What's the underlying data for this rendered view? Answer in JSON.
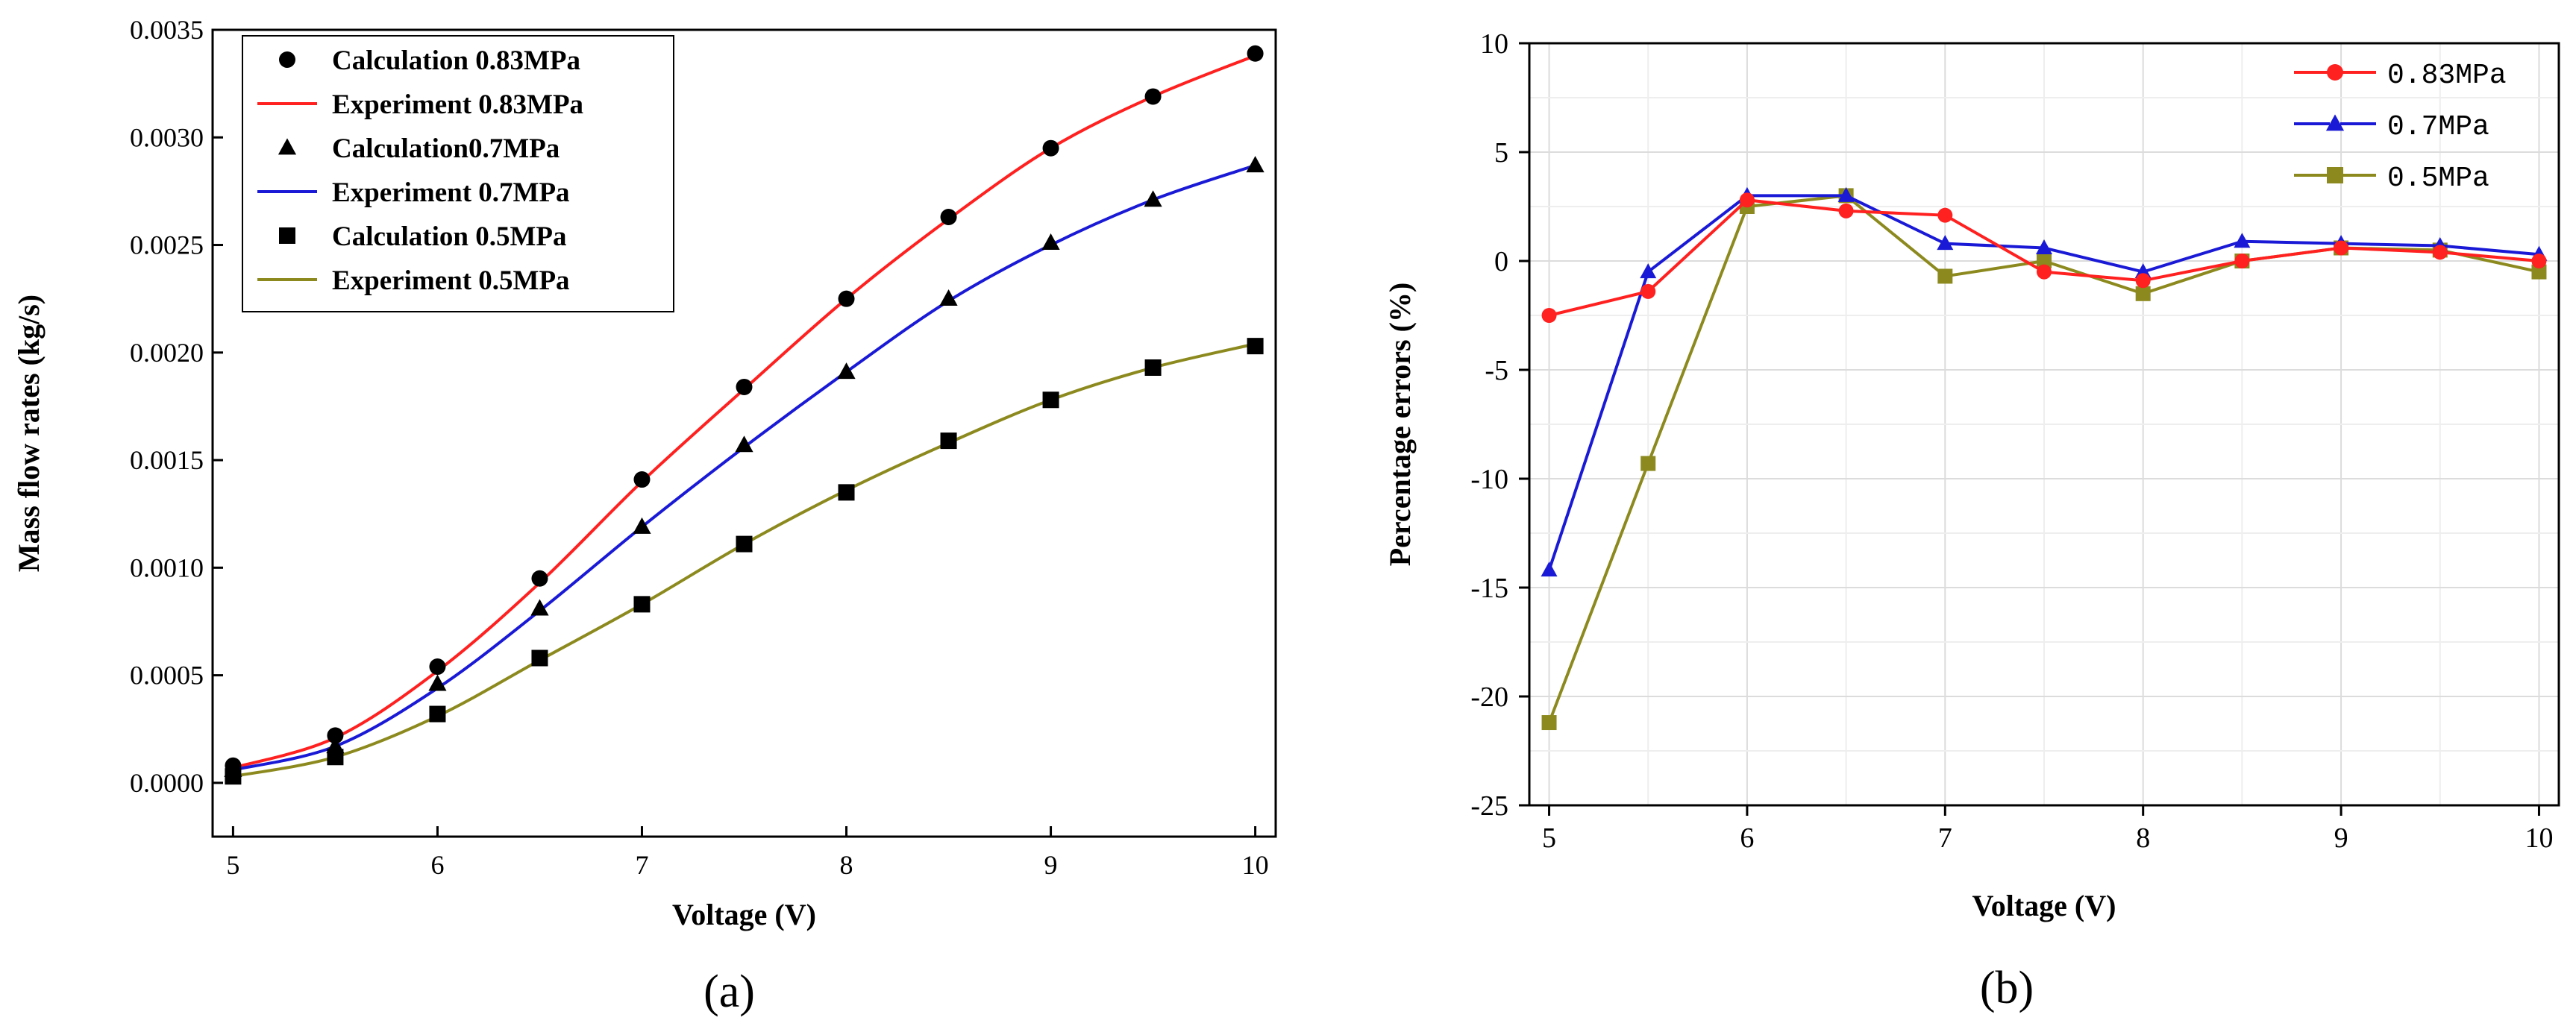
{
  "chart_data": [
    {
      "type": "line",
      "panel_label": "(a)",
      "xlabel": "Voltage (V)",
      "ylabel": "Mass flow rates (kg/s)",
      "xlim": [
        4.9,
        10.1
      ],
      "ylim": [
        -0.00025,
        0.0035
      ],
      "xticks": [
        5,
        6,
        7,
        8,
        9,
        10
      ],
      "yticks": [
        0,
        0.0005,
        0.001,
        0.0015,
        0.002,
        0.0025,
        0.003,
        0.0035
      ],
      "ytick_labels": [
        "0.0000",
        "0.0005",
        "0.0010",
        "0.0015",
        "0.0020",
        "0.0025",
        "0.0030",
        "0.0035"
      ],
      "grid": false,
      "legend_position": "top-left",
      "x": [
        5,
        5.5,
        6,
        6.5,
        7,
        7.5,
        8,
        8.5,
        9,
        9.5,
        10
      ],
      "series": [
        {
          "name": "Calculation 0.83MPa",
          "kind": "scatter",
          "marker": "circle",
          "color": "#000000",
          "values": [
            8e-05,
            0.00022,
            0.00054,
            0.00095,
            0.00141,
            0.00184,
            0.00225,
            0.00263,
            0.00295,
            0.00319,
            0.00339
          ]
        },
        {
          "name": "Experiment 0.83MPa",
          "kind": "line",
          "color": "#ff2020",
          "values": [
            7e-05,
            0.00021,
            0.00052,
            0.00093,
            0.0014,
            0.00183,
            0.00225,
            0.00262,
            0.00295,
            0.00319,
            0.00338
          ]
        },
        {
          "name": "Calculation0.7MPa",
          "kind": "scatter",
          "marker": "triangle",
          "color": "#000000",
          "values": [
            6e-05,
            0.00017,
            0.00046,
            0.00081,
            0.00119,
            0.00157,
            0.00191,
            0.00225,
            0.00251,
            0.00271,
            0.00287
          ]
        },
        {
          "name": "Experiment 0.7MPa",
          "kind": "line",
          "color": "#1a1ad6",
          "values": [
            6e-05,
            0.00017,
            0.00044,
            0.0008,
            0.00119,
            0.00156,
            0.00191,
            0.00224,
            0.0025,
            0.00271,
            0.00287
          ]
        },
        {
          "name": "Calculation 0.5MPa",
          "kind": "scatter",
          "marker": "square",
          "color": "#000000",
          "values": [
            3e-05,
            0.00012,
            0.00032,
            0.00058,
            0.00083,
            0.00111,
            0.00135,
            0.00159,
            0.00178,
            0.00193,
            0.00203
          ]
        },
        {
          "name": "Experiment 0.5MPa",
          "kind": "line",
          "color": "#8c8a1e",
          "values": [
            3e-05,
            0.00012,
            0.00031,
            0.00057,
            0.00083,
            0.00111,
            0.00136,
            0.00158,
            0.00178,
            0.00193,
            0.00204
          ]
        }
      ]
    },
    {
      "type": "line",
      "panel_label": "(b)",
      "xlabel": "Voltage (V)",
      "ylabel": "Percentage errors (%)",
      "xlim": [
        4.9,
        10.1
      ],
      "ylim": [
        -25,
        10
      ],
      "xticks": [
        5,
        6,
        7,
        8,
        9,
        10
      ],
      "yticks": [
        -25,
        -20,
        -15,
        -10,
        -5,
        0,
        5,
        10
      ],
      "grid": true,
      "legend_position": "top-right",
      "x": [
        5,
        5.5,
        6,
        6.5,
        7,
        7.5,
        8,
        8.5,
        9,
        9.5,
        10
      ],
      "series": [
        {
          "name": "0.83MPa",
          "marker": "circle",
          "color": "#ff2020",
          "values": [
            -2.5,
            -1.4,
            2.8,
            2.3,
            2.1,
            -0.5,
            -0.9,
            0.0,
            0.6,
            0.4,
            0.0
          ]
        },
        {
          "name": "0.7MPa",
          "marker": "triangle",
          "color": "#1a1ad6",
          "values": [
            -14.2,
            -0.5,
            3.0,
            3.0,
            0.8,
            0.6,
            -0.5,
            0.9,
            0.8,
            0.7,
            0.3
          ]
        },
        {
          "name": "0.5MPa",
          "marker": "square",
          "color": "#8c8a1e",
          "values": [
            -21.2,
            -9.3,
            2.5,
            3.0,
            -0.7,
            0.0,
            -1.5,
            0.0,
            0.6,
            0.5,
            -0.5
          ]
        }
      ]
    }
  ]
}
